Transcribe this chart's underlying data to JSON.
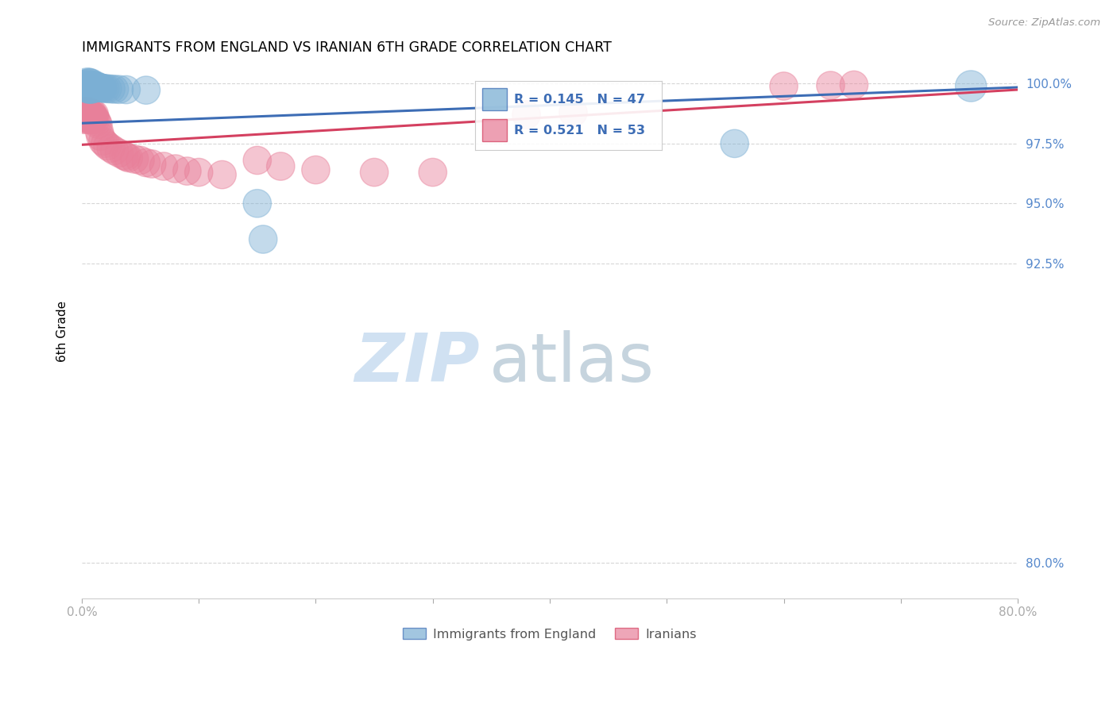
{
  "title": "IMMIGRANTS FROM ENGLAND VS IRANIAN 6TH GRADE CORRELATION CHART",
  "source": "Source: ZipAtlas.com",
  "ylabel": "6th Grade",
  "legend_label1": "Immigrants from England",
  "legend_label2": "Iranians",
  "R1": 0.145,
  "N1": 47,
  "R2": 0.521,
  "N2": 53,
  "color1": "#7BAFD4",
  "color2": "#E8809A",
  "trendline1_color": "#3D6DB5",
  "trendline2_color": "#D44060",
  "x_min": 0.0,
  "x_max": 0.8,
  "y_min": 0.785,
  "y_max": 1.008,
  "yticks": [
    0.8,
    0.925,
    0.95,
    0.975,
    1.0
  ],
  "ytick_labels": [
    "80.0%",
    "92.5%",
    "95.0%",
    "97.5%",
    "100.0%"
  ],
  "xtick_vals": [
    0.0,
    0.1,
    0.2,
    0.3,
    0.4,
    0.5,
    0.6,
    0.7,
    0.8
  ],
  "xtick_labels": [
    "0.0%",
    "",
    "",
    "",
    "",
    "",
    "",
    "",
    "80.0%"
  ],
  "watermark_zip": "ZIP",
  "watermark_atlas": "atlas",
  "trendline1_x": [
    0.0,
    0.8
  ],
  "trendline1_y": [
    0.9835,
    0.9985
  ],
  "trendline2_x": [
    0.0,
    0.8
  ],
  "trendline2_y": [
    0.9745,
    0.9975
  ],
  "england_x": [
    0.002,
    0.003,
    0.003,
    0.004,
    0.004,
    0.004,
    0.005,
    0.005,
    0.005,
    0.005,
    0.005,
    0.006,
    0.006,
    0.006,
    0.006,
    0.007,
    0.007,
    0.007,
    0.007,
    0.008,
    0.008,
    0.008,
    0.009,
    0.009,
    0.01,
    0.01,
    0.011,
    0.011,
    0.012,
    0.012,
    0.013,
    0.014,
    0.015,
    0.016,
    0.017,
    0.018,
    0.02,
    0.022,
    0.025,
    0.028,
    0.032,
    0.038,
    0.055,
    0.15,
    0.155,
    0.558,
    0.76
  ],
  "england_y": [
    0.999,
    0.9995,
    0.9985,
    0.999,
    0.9988,
    0.9992,
    0.999,
    0.9988,
    0.9985,
    0.9992,
    0.9995,
    0.999,
    0.9988,
    0.9985,
    0.9992,
    0.999,
    0.9988,
    0.9985,
    0.9992,
    0.999,
    0.9988,
    0.9985,
    0.9992,
    0.999,
    0.9988,
    0.9985,
    0.9988,
    0.9985,
    0.999,
    0.9988,
    0.9986,
    0.9985,
    0.9984,
    0.9983,
    0.9982,
    0.9981,
    0.998,
    0.9979,
    0.9978,
    0.9977,
    0.9976,
    0.9975,
    0.9973,
    0.95,
    0.935,
    0.975,
    0.999
  ],
  "england_size": [
    55,
    55,
    65,
    55,
    65,
    75,
    55,
    65,
    75,
    85,
    95,
    65,
    75,
    85,
    95,
    65,
    75,
    85,
    95,
    65,
    75,
    85,
    65,
    75,
    65,
    75,
    65,
    75,
    65,
    75,
    65,
    65,
    65,
    65,
    65,
    65,
    65,
    65,
    65,
    65,
    65,
    65,
    65,
    65,
    65,
    65,
    80
  ],
  "iranian_x": [
    0.001,
    0.002,
    0.002,
    0.003,
    0.003,
    0.004,
    0.004,
    0.005,
    0.005,
    0.006,
    0.006,
    0.007,
    0.007,
    0.008,
    0.008,
    0.009,
    0.009,
    0.01,
    0.01,
    0.011,
    0.012,
    0.013,
    0.014,
    0.015,
    0.016,
    0.018,
    0.02,
    0.022,
    0.025,
    0.028,
    0.032,
    0.036,
    0.038,
    0.04,
    0.045,
    0.05,
    0.055,
    0.06,
    0.07,
    0.08,
    0.09,
    0.1,
    0.12,
    0.15,
    0.17,
    0.2,
    0.25,
    0.3,
    0.38,
    0.42,
    0.6,
    0.64,
    0.66
  ],
  "iranian_y": [
    0.987,
    0.985,
    0.988,
    0.986,
    0.9875,
    0.9855,
    0.987,
    0.985,
    0.988,
    0.986,
    0.9875,
    0.985,
    0.987,
    0.9855,
    0.9875,
    0.985,
    0.9865,
    0.9855,
    0.987,
    0.986,
    0.985,
    0.984,
    0.983,
    0.98,
    0.978,
    0.976,
    0.975,
    0.974,
    0.973,
    0.972,
    0.971,
    0.97,
    0.9695,
    0.969,
    0.9685,
    0.968,
    0.967,
    0.9665,
    0.9655,
    0.9645,
    0.9635,
    0.963,
    0.962,
    0.968,
    0.9655,
    0.964,
    0.963,
    0.963,
    0.987,
    0.988,
    0.999,
    0.9993,
    0.9995
  ],
  "iranian_size": [
    65,
    65,
    75,
    65,
    75,
    65,
    75,
    65,
    75,
    65,
    75,
    65,
    75,
    65,
    75,
    65,
    75,
    65,
    75,
    65,
    65,
    65,
    65,
    65,
    65,
    65,
    65,
    65,
    65,
    65,
    65,
    65,
    65,
    65,
    65,
    65,
    65,
    65,
    65,
    65,
    65,
    65,
    65,
    65,
    65,
    65,
    65,
    65,
    65,
    65,
    65,
    65,
    65
  ]
}
